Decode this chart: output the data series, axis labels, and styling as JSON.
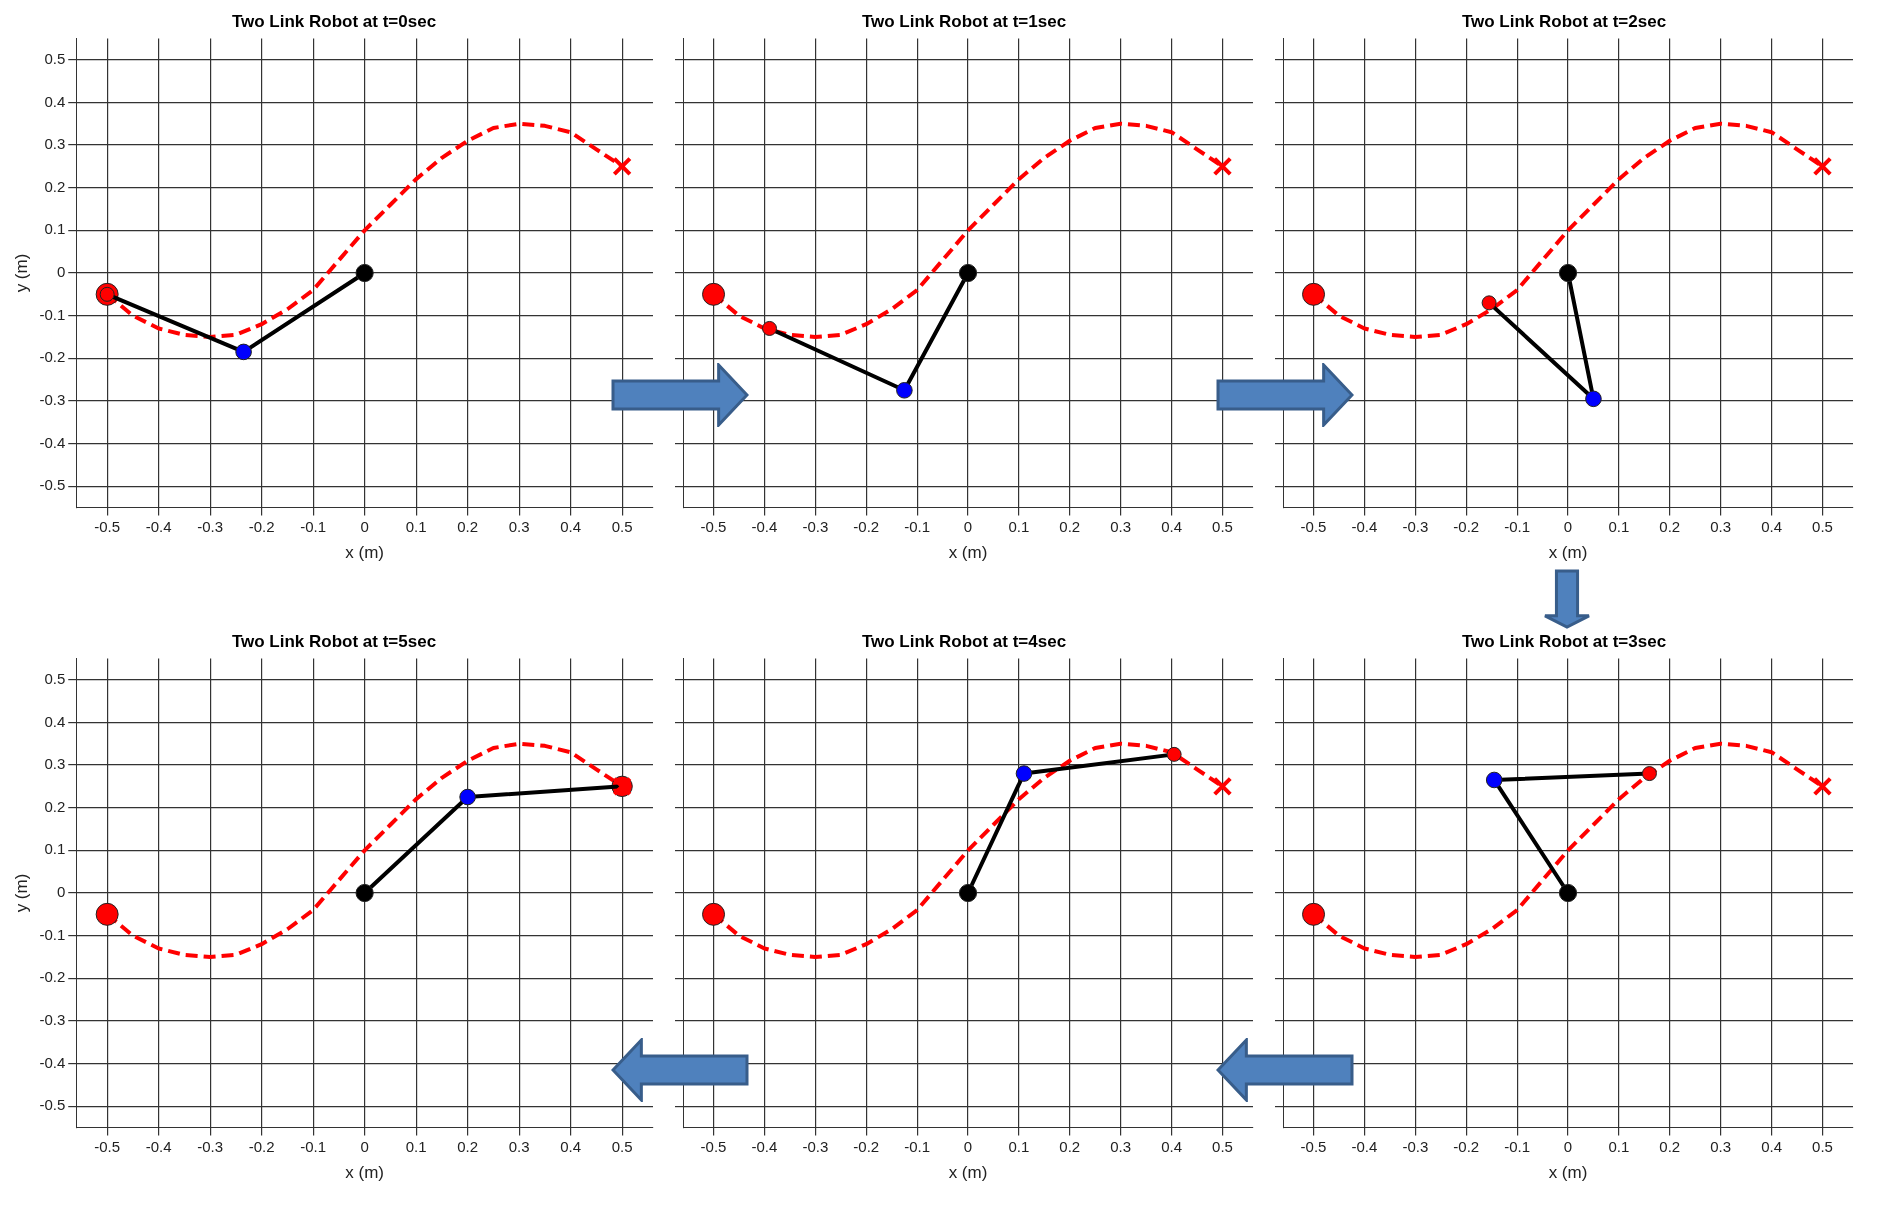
{
  "chart_data": [
    {
      "type": "scatter",
      "title": "Two Link Robot at t=0sec",
      "xlabel": "x (m)",
      "ylabel": "y (m)",
      "xlim": [
        -0.56,
        0.56
      ],
      "ylim": [
        -0.55,
        0.55
      ],
      "xticks": [
        -0.5,
        -0.4,
        -0.3,
        -0.2,
        -0.1,
        0,
        0.1,
        0.2,
        0.3,
        0.4,
        0.5
      ],
      "yticks": [
        -0.5,
        -0.4,
        -0.3,
        -0.2,
        -0.1,
        0,
        0.1,
        0.2,
        0.3,
        0.4,
        0.5
      ],
      "grid": true,
      "legend": false,
      "series": [
        {
          "type": "line",
          "color": "#ff0000",
          "line_style": "dashed",
          "marker": "none",
          "x": [
            -0.5,
            -0.45,
            -0.4,
            -0.35,
            -0.3,
            -0.25,
            -0.2,
            -0.15,
            -0.1,
            -0.05,
            0,
            0.05,
            0.1,
            0.15,
            0.2,
            0.25,
            0.3,
            0.35,
            0.4,
            0.45,
            0.5
          ],
          "values": [
            -0.05,
            -0.1,
            -0.13,
            -0.145,
            -0.15,
            -0.145,
            -0.12,
            -0.085,
            -0.04,
            0.03,
            0.1,
            0.16,
            0.22,
            0.27,
            0.31,
            0.34,
            0.35,
            0.345,
            0.33,
            0.29,
            0.25
          ]
        },
        {
          "type": "scatter",
          "color": "#ff0000",
          "marker": "circle",
          "x": [
            -0.5
          ],
          "values": [
            -0.05
          ]
        },
        {
          "type": "scatter",
          "color": "#ff0000",
          "marker": "cross",
          "x": [
            0.5
          ],
          "values": [
            0.25
          ]
        },
        {
          "type": "line",
          "color": "#000000",
          "marker": "none",
          "x": [
            0,
            -0.235,
            -0.5
          ],
          "values": [
            0,
            -0.185,
            -0.05
          ]
        },
        {
          "type": "scatter",
          "color": "#000000",
          "marker": "circle",
          "x": [
            0
          ],
          "values": [
            0
          ]
        },
        {
          "type": "scatter",
          "color": "#0000ff",
          "marker": "circle",
          "x": [
            -0.235
          ],
          "values": [
            -0.185
          ]
        },
        {
          "type": "scatter",
          "color": "#ff0000",
          "marker": "circle",
          "x": [
            -0.5
          ],
          "values": [
            -0.05
          ]
        }
      ]
    },
    {
      "type": "scatter",
      "title": "Two Link Robot at t=1sec",
      "xlabel": "x (m)",
      "xlim": [
        -0.56,
        0.56
      ],
      "ylim": [
        -0.55,
        0.55
      ],
      "xticks": [
        -0.5,
        -0.4,
        -0.3,
        -0.2,
        -0.1,
        0,
        0.1,
        0.2,
        0.3,
        0.4,
        0.5
      ],
      "yticks": [
        -0.5,
        -0.4,
        -0.3,
        -0.2,
        -0.1,
        0,
        0.1,
        0.2,
        0.3,
        0.4,
        0.5
      ],
      "grid": true,
      "legend": false,
      "tick_labels": "x",
      "series": [
        {
          "type": "line",
          "color": "#ff0000",
          "line_style": "dashed",
          "marker": "none",
          "x": [
            -0.5,
            -0.45,
            -0.4,
            -0.35,
            -0.3,
            -0.25,
            -0.2,
            -0.15,
            -0.1,
            -0.05,
            0,
            0.05,
            0.1,
            0.15,
            0.2,
            0.25,
            0.3,
            0.35,
            0.4,
            0.45,
            0.5
          ],
          "values": [
            -0.05,
            -0.1,
            -0.13,
            -0.145,
            -0.15,
            -0.145,
            -0.12,
            -0.085,
            -0.04,
            0.03,
            0.1,
            0.16,
            0.22,
            0.27,
            0.31,
            0.34,
            0.35,
            0.345,
            0.33,
            0.29,
            0.25
          ]
        },
        {
          "type": "scatter",
          "color": "#ff0000",
          "marker": "circle",
          "x": [
            -0.5
          ],
          "values": [
            -0.05
          ]
        },
        {
          "type": "scatter",
          "color": "#ff0000",
          "marker": "cross",
          "x": [
            0.5
          ],
          "values": [
            0.25
          ]
        },
        {
          "type": "line",
          "color": "#000000",
          "marker": "none",
          "x": [
            0,
            -0.125,
            -0.39
          ],
          "values": [
            0,
            -0.275,
            -0.13
          ]
        },
        {
          "type": "scatter",
          "color": "#000000",
          "marker": "circle",
          "x": [
            0
          ],
          "values": [
            0
          ]
        },
        {
          "type": "scatter",
          "color": "#0000ff",
          "marker": "circle",
          "x": [
            -0.125
          ],
          "values": [
            -0.275
          ]
        },
        {
          "type": "scatter",
          "color": "#ff0000",
          "marker": "circle",
          "x": [
            -0.39
          ],
          "values": [
            -0.13
          ]
        }
      ]
    },
    {
      "type": "scatter",
      "title": "Two Link Robot at t=2sec",
      "xlabel": "x (m)",
      "xlim": [
        -0.56,
        0.56
      ],
      "ylim": [
        -0.55,
        0.55
      ],
      "xticks": [
        -0.5,
        -0.4,
        -0.3,
        -0.2,
        -0.1,
        0,
        0.1,
        0.2,
        0.3,
        0.4,
        0.5
      ],
      "yticks": [
        -0.5,
        -0.4,
        -0.3,
        -0.2,
        -0.1,
        0,
        0.1,
        0.2,
        0.3,
        0.4,
        0.5
      ],
      "grid": true,
      "legend": false,
      "tick_labels": "x",
      "series": [
        {
          "type": "line",
          "color": "#ff0000",
          "line_style": "dashed",
          "marker": "none",
          "x": [
            -0.5,
            -0.45,
            -0.4,
            -0.35,
            -0.3,
            -0.25,
            -0.2,
            -0.15,
            -0.1,
            -0.05,
            0,
            0.05,
            0.1,
            0.15,
            0.2,
            0.25,
            0.3,
            0.35,
            0.4,
            0.45,
            0.5
          ],
          "values": [
            -0.05,
            -0.1,
            -0.13,
            -0.145,
            -0.15,
            -0.145,
            -0.12,
            -0.085,
            -0.04,
            0.03,
            0.1,
            0.16,
            0.22,
            0.27,
            0.31,
            0.34,
            0.35,
            0.345,
            0.33,
            0.29,
            0.25
          ]
        },
        {
          "type": "scatter",
          "color": "#ff0000",
          "marker": "circle",
          "x": [
            -0.5
          ],
          "values": [
            -0.05
          ]
        },
        {
          "type": "scatter",
          "color": "#ff0000",
          "marker": "cross",
          "x": [
            0.5
          ],
          "values": [
            0.25
          ]
        },
        {
          "type": "line",
          "color": "#000000",
          "marker": "none",
          "x": [
            0,
            0.05,
            -0.155
          ],
          "values": [
            0,
            -0.295,
            -0.07
          ]
        },
        {
          "type": "scatter",
          "color": "#000000",
          "marker": "circle",
          "x": [
            0
          ],
          "values": [
            0
          ]
        },
        {
          "type": "scatter",
          "color": "#0000ff",
          "marker": "circle",
          "x": [
            0.05
          ],
          "values": [
            -0.295
          ]
        },
        {
          "type": "scatter",
          "color": "#ff0000",
          "marker": "circle",
          "x": [
            -0.155
          ],
          "values": [
            -0.07
          ]
        }
      ]
    },
    {
      "type": "scatter",
      "title": "Two Link Robot at t=5sec",
      "xlabel": "x (m)",
      "ylabel": "y (m)",
      "xlim": [
        -0.56,
        0.56
      ],
      "ylim": [
        -0.55,
        0.55
      ],
      "xticks": [
        -0.5,
        -0.4,
        -0.3,
        -0.2,
        -0.1,
        0,
        0.1,
        0.2,
        0.3,
        0.4,
        0.5
      ],
      "yticks": [
        -0.5,
        -0.4,
        -0.3,
        -0.2,
        -0.1,
        0,
        0.1,
        0.2,
        0.3,
        0.4,
        0.5
      ],
      "grid": true,
      "legend": false,
      "series": [
        {
          "type": "line",
          "color": "#ff0000",
          "line_style": "dashed",
          "marker": "none",
          "x": [
            -0.5,
            -0.45,
            -0.4,
            -0.35,
            -0.3,
            -0.25,
            -0.2,
            -0.15,
            -0.1,
            -0.05,
            0,
            0.05,
            0.1,
            0.15,
            0.2,
            0.25,
            0.3,
            0.35,
            0.4,
            0.45,
            0.5
          ],
          "values": [
            -0.05,
            -0.1,
            -0.13,
            -0.145,
            -0.15,
            -0.145,
            -0.12,
            -0.085,
            -0.04,
            0.03,
            0.1,
            0.16,
            0.22,
            0.27,
            0.31,
            0.34,
            0.35,
            0.345,
            0.33,
            0.29,
            0.25
          ]
        },
        {
          "type": "scatter",
          "color": "#ff0000",
          "marker": "circle",
          "x": [
            -0.5
          ],
          "values": [
            -0.05
          ]
        },
        {
          "type": "scatter",
          "color": "#ff0000",
          "marker": "circle",
          "x": [
            0.5
          ],
          "values": [
            0.25
          ]
        },
        {
          "type": "line",
          "color": "#000000",
          "marker": "none",
          "x": [
            0,
            0.2,
            0.5
          ],
          "values": [
            0,
            0.225,
            0.25
          ]
        },
        {
          "type": "scatter",
          "color": "#000000",
          "marker": "circle",
          "x": [
            0
          ],
          "values": [
            0
          ]
        },
        {
          "type": "scatter",
          "color": "#0000ff",
          "marker": "circle",
          "x": [
            0.2
          ],
          "values": [
            0.225
          ]
        },
        {
          "type": "scatter",
          "color": "#ff0000",
          "marker": "cross",
          "x": [
            0.5
          ],
          "values": [
            0.25
          ]
        }
      ]
    },
    {
      "type": "scatter",
      "title": "Two Link Robot at t=4sec",
      "xlabel": "x (m)",
      "xlim": [
        -0.56,
        0.56
      ],
      "ylim": [
        -0.55,
        0.55
      ],
      "xticks": [
        -0.5,
        -0.4,
        -0.3,
        -0.2,
        -0.1,
        0,
        0.1,
        0.2,
        0.3,
        0.4,
        0.5
      ],
      "yticks": [
        -0.5,
        -0.4,
        -0.3,
        -0.2,
        -0.1,
        0,
        0.1,
        0.2,
        0.3,
        0.4,
        0.5
      ],
      "grid": true,
      "legend": false,
      "tick_labels": "x",
      "series": [
        {
          "type": "line",
          "color": "#ff0000",
          "line_style": "dashed",
          "marker": "none",
          "x": [
            -0.5,
            -0.45,
            -0.4,
            -0.35,
            -0.3,
            -0.25,
            -0.2,
            -0.15,
            -0.1,
            -0.05,
            0,
            0.05,
            0.1,
            0.15,
            0.2,
            0.25,
            0.3,
            0.35,
            0.4,
            0.45,
            0.5
          ],
          "values": [
            -0.05,
            -0.1,
            -0.13,
            -0.145,
            -0.15,
            -0.145,
            -0.12,
            -0.085,
            -0.04,
            0.03,
            0.1,
            0.16,
            0.22,
            0.27,
            0.31,
            0.34,
            0.35,
            0.345,
            0.33,
            0.29,
            0.25
          ]
        },
        {
          "type": "scatter",
          "color": "#ff0000",
          "marker": "circle",
          "x": [
            -0.5
          ],
          "values": [
            -0.05
          ]
        },
        {
          "type": "scatter",
          "color": "#ff0000",
          "marker": "cross",
          "x": [
            0.5
          ],
          "values": [
            0.25
          ]
        },
        {
          "type": "line",
          "color": "#000000",
          "marker": "none",
          "x": [
            0,
            0.11,
            0.405
          ],
          "values": [
            0,
            0.28,
            0.325
          ]
        },
        {
          "type": "scatter",
          "color": "#000000",
          "marker": "circle",
          "x": [
            0
          ],
          "values": [
            0
          ]
        },
        {
          "type": "scatter",
          "color": "#0000ff",
          "marker": "circle",
          "x": [
            0.11
          ],
          "values": [
            0.28
          ]
        },
        {
          "type": "scatter",
          "color": "#ff0000",
          "marker": "circle",
          "x": [
            0.405
          ],
          "values": [
            0.325
          ]
        }
      ]
    },
    {
      "type": "scatter",
      "title": "Two Link Robot at t=3sec",
      "xlabel": "x (m)",
      "xlim": [
        -0.56,
        0.56
      ],
      "ylim": [
        -0.55,
        0.55
      ],
      "xticks": [
        -0.5,
        -0.4,
        -0.3,
        -0.2,
        -0.1,
        0,
        0.1,
        0.2,
        0.3,
        0.4,
        0.5
      ],
      "yticks": [
        -0.5,
        -0.4,
        -0.3,
        -0.2,
        -0.1,
        0,
        0.1,
        0.2,
        0.3,
        0.4,
        0.5
      ],
      "grid": true,
      "legend": false,
      "tick_labels": "x",
      "series": [
        {
          "type": "line",
          "color": "#ff0000",
          "line_style": "dashed",
          "marker": "none",
          "x": [
            -0.5,
            -0.45,
            -0.4,
            -0.35,
            -0.3,
            -0.25,
            -0.2,
            -0.15,
            -0.1,
            -0.05,
            0,
            0.05,
            0.1,
            0.15,
            0.2,
            0.25,
            0.3,
            0.35,
            0.4,
            0.45,
            0.5
          ],
          "values": [
            -0.05,
            -0.1,
            -0.13,
            -0.145,
            -0.15,
            -0.145,
            -0.12,
            -0.085,
            -0.04,
            0.03,
            0.1,
            0.16,
            0.22,
            0.27,
            0.31,
            0.34,
            0.35,
            0.345,
            0.33,
            0.29,
            0.25
          ]
        },
        {
          "type": "scatter",
          "color": "#ff0000",
          "marker": "circle",
          "x": [
            -0.5
          ],
          "values": [
            -0.05
          ]
        },
        {
          "type": "scatter",
          "color": "#ff0000",
          "marker": "cross",
          "x": [
            0.5
          ],
          "values": [
            0.25
          ]
        },
        {
          "type": "line",
          "color": "#000000",
          "marker": "none",
          "x": [
            0,
            -0.145,
            0.16
          ],
          "values": [
            0,
            0.265,
            0.28
          ]
        },
        {
          "type": "scatter",
          "color": "#000000",
          "marker": "circle",
          "x": [
            0
          ],
          "values": [
            0
          ]
        },
        {
          "type": "scatter",
          "color": "#0000ff",
          "marker": "circle",
          "x": [
            -0.145
          ],
          "values": [
            0.265
          ]
        },
        {
          "type": "scatter",
          "color": "#ff0000",
          "marker": "circle",
          "x": [
            0.16
          ],
          "values": [
            0.28
          ]
        }
      ]
    }
  ]
}
